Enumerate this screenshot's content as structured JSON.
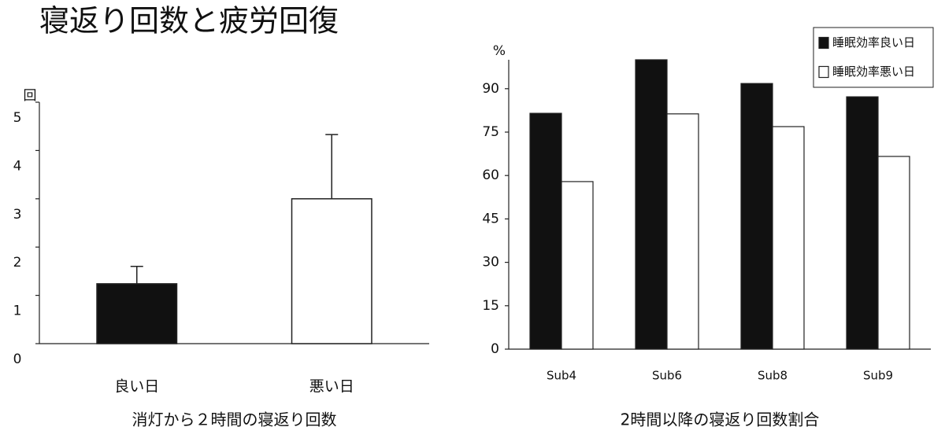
{
  "title": "寝返り回数と疲労回復",
  "chart_data": [
    {
      "type": "bar",
      "xlabel": "消灯から２時間の寝返り回数",
      "ylabel": "回",
      "categories": [
        "良い日",
        "悪い日"
      ],
      "values": [
        1.24,
        3.0
      ],
      "errors": [
        0.36,
        1.33
      ],
      "colors": [
        "#111111",
        "#ffffff"
      ],
      "ylim": [
        0,
        5
      ],
      "yticks": [
        0,
        1,
        2,
        3,
        4,
        5
      ]
    },
    {
      "type": "grouped-bar",
      "xlabel": "2時間以降の寝返り回数割合",
      "ylabel": "%",
      "categories": [
        "Sub4",
        "Sub6",
        "Sub8",
        "Sub9"
      ],
      "series": [
        {
          "name": "睡眠効率良い日",
          "color": "#111111",
          "values": [
            81.5,
            100,
            91.8,
            87.2
          ]
        },
        {
          "name": "睡眠効率悪い日",
          "color": "#ffffff",
          "values": [
            57.9,
            81.3,
            76.9,
            66.6
          ]
        }
      ],
      "ylim": [
        0,
        100
      ],
      "yticks": [
        0,
        15,
        30,
        45,
        60,
        75,
        90
      ],
      "legend": "top-right"
    }
  ]
}
